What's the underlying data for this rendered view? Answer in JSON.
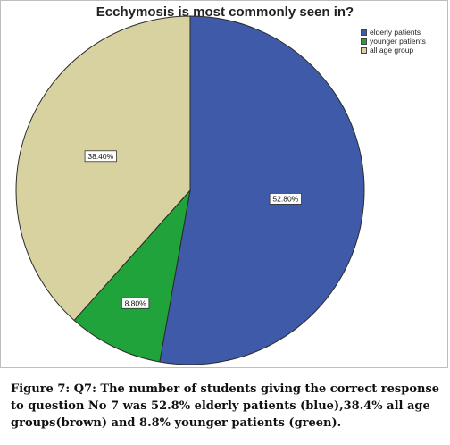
{
  "chart_data": {
    "type": "pie",
    "title": "Ecchymosis is most commonly seen in?",
    "slices": [
      {
        "name": "elderly patients",
        "value": 52.8,
        "label": "52.80%",
        "color": "#3f5aa8"
      },
      {
        "name": "younger patients",
        "value": 8.8,
        "label": "8.80%",
        "color": "#1fa33a"
      },
      {
        "name": "all age group",
        "value": 38.4,
        "label": "38.40%",
        "color": "#d8d1a0"
      }
    ],
    "legend_position": "top-right",
    "direction": "clockwise-from-top"
  },
  "caption": "Figure 7: Q7: The number of students giving the correct response to question No 7 was 52.8% elderly patients (blue),38.4% all age groups(brown) and 8.8% younger patients (green)."
}
